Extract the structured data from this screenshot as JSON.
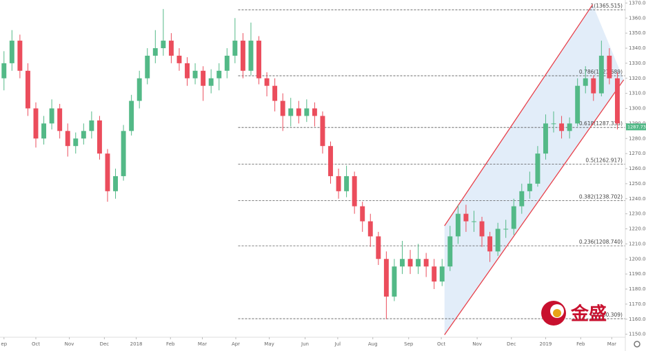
{
  "chart_data": {
    "type": "candlestick",
    "xlim": [
      -0.5,
      78
    ],
    "xticks": [
      {
        "value": 0,
        "label": "ep"
      },
      {
        "value": 4.0,
        "label": "Oct"
      },
      {
        "value": 8.2,
        "label": "Nov"
      },
      {
        "value": 12.6,
        "label": "Dec"
      },
      {
        "value": 16.6,
        "label": "2018"
      },
      {
        "value": 20.9,
        "label": "Feb"
      },
      {
        "value": 24.9,
        "label": "Mar"
      },
      {
        "value": 29.1,
        "label": "Apr"
      },
      {
        "value": 33.3,
        "label": "May"
      },
      {
        "value": 37.8,
        "label": "Jun"
      },
      {
        "value": 41.9,
        "label": "Jul"
      },
      {
        "value": 46.3,
        "label": "Aug"
      },
      {
        "value": 50.8,
        "label": "Sep"
      },
      {
        "value": 54.9,
        "label": "Oct"
      },
      {
        "value": 59.4,
        "label": "Nov"
      },
      {
        "value": 63.7,
        "label": "Dec"
      },
      {
        "value": 68.0,
        "label": "2019"
      },
      {
        "value": 72.4,
        "label": "Feb"
      },
      {
        "value": 76.3,
        "label": "Mar"
      }
    ],
    "ylim": [
      1148,
      1372
    ],
    "yticks": [
      {
        "value": 1150,
        "label": "1150.000"
      },
      {
        "value": 1160,
        "label": "1160.000"
      },
      {
        "value": 1170,
        "label": "1170.000"
      },
      {
        "value": 1180,
        "label": "1180.000"
      },
      {
        "value": 1190,
        "label": "1190.000"
      },
      {
        "value": 1200,
        "label": "1200.000"
      },
      {
        "value": 1210,
        "label": "1210.000"
      },
      {
        "value": 1220,
        "label": "1220.000"
      },
      {
        "value": 1230,
        "label": "1230.000"
      },
      {
        "value": 1240,
        "label": "1240.000"
      },
      {
        "value": 1250,
        "label": "1250.000"
      },
      {
        "value": 1260,
        "label": "1260.000"
      },
      {
        "value": 1270,
        "label": "1270.000"
      },
      {
        "value": 1280,
        "label": "1280.000"
      },
      {
        "value": 1290,
        "label": "1290.000"
      },
      {
        "value": 1300,
        "label": "1300.000"
      },
      {
        "value": 1310,
        "label": "1310.000"
      },
      {
        "value": 1320,
        "label": "1320.000"
      },
      {
        "value": 1330,
        "label": "1330.000"
      },
      {
        "value": 1340,
        "label": "1340.000"
      },
      {
        "value": 1350,
        "label": "1350.000"
      },
      {
        "value": 1360,
        "label": "1360.000"
      },
      {
        "value": 1370,
        "label": "1370.000"
      }
    ],
    "up_color": "#53b987",
    "down_color": "#eb4d5c",
    "open": [
      1320,
      1330,
      1345,
      1325,
      1300,
      1280,
      1290,
      1300,
      1285,
      1275,
      1280,
      1285,
      1292,
      1270,
      1245,
      1255,
      1285,
      1305,
      1320,
      1335,
      1340,
      1345,
      1335,
      1330,
      1320,
      1325,
      1315,
      1320,
      1325,
      1335,
      1345,
      1325,
      1345,
      1320,
      1315,
      1305,
      1295,
      1300,
      1295,
      1300,
      1295,
      1275,
      1255,
      1245,
      1255,
      1235,
      1225,
      1215,
      1200,
      1175,
      1195,
      1200,
      1195,
      1200,
      1195,
      1185,
      1195,
      1215,
      1230,
      1225,
      1225,
      1215,
      1205,
      1220,
      1220,
      1235,
      1245,
      1250,
      1270,
      1290,
      1290,
      1285,
      1290,
      1315,
      1320,
      1310,
      1335,
      1320
    ],
    "high": [
      1338,
      1352,
      1349,
      1330,
      1304,
      1295,
      1306,
      1303,
      1290,
      1284,
      1290,
      1298,
      1295,
      1273,
      1260,
      1289,
      1309,
      1325,
      1340,
      1352,
      1366,
      1350,
      1340,
      1334,
      1330,
      1328,
      1326,
      1330,
      1340,
      1360,
      1350,
      1357,
      1348,
      1324,
      1320,
      1310,
      1307,
      1305,
      1306,
      1304,
      1298,
      1278,
      1260,
      1262,
      1258,
      1238,
      1230,
      1218,
      1205,
      1200,
      1212,
      1206,
      1210,
      1204,
      1200,
      1200,
      1222,
      1236,
      1236,
      1232,
      1228,
      1218,
      1224,
      1226,
      1240,
      1250,
      1258,
      1275,
      1296,
      1298,
      1295,
      1294,
      1320,
      1328,
      1322,
      1345,
      1340,
      1324
    ],
    "low": [
      1312,
      1325,
      1320,
      1295,
      1274,
      1276,
      1286,
      1280,
      1268,
      1270,
      1276,
      1280,
      1266,
      1238,
      1240,
      1252,
      1282,
      1300,
      1316,
      1330,
      1335,
      1330,
      1325,
      1315,
      1316,
      1305,
      1310,
      1312,
      1320,
      1330,
      1320,
      1322,
      1316,
      1308,
      1298,
      1285,
      1288,
      1290,
      1291,
      1288,
      1270,
      1250,
      1240,
      1241,
      1230,
      1218,
      1208,
      1196,
      1160,
      1172,
      1190,
      1190,
      1190,
      1188,
      1180,
      1182,
      1192,
      1210,
      1218,
      1218,
      1208,
      1198,
      1202,
      1214,
      1216,
      1230,
      1240,
      1248,
      1266,
      1284,
      1280,
      1280,
      1288,
      1310,
      1305,
      1308,
      1316,
      1286
    ],
    "close": [
      1330,
      1345,
      1325,
      1300,
      1280,
      1290,
      1300,
      1285,
      1275,
      1280,
      1285,
      1292,
      1270,
      1245,
      1255,
      1285,
      1305,
      1320,
      1335,
      1340,
      1345,
      1335,
      1330,
      1320,
      1325,
      1315,
      1320,
      1325,
      1335,
      1345,
      1325,
      1345,
      1320,
      1315,
      1305,
      1295,
      1300,
      1295,
      1300,
      1295,
      1275,
      1255,
      1245,
      1255,
      1235,
      1225,
      1215,
      1200,
      1175,
      1195,
      1200,
      1195,
      1200,
      1195,
      1185,
      1195,
      1215,
      1230,
      1225,
      1225,
      1215,
      1205,
      1220,
      1220,
      1235,
      1245,
      1250,
      1270,
      1290,
      1290,
      1285,
      1290,
      1315,
      1320,
      1310,
      1335,
      1320,
      1290
    ],
    "fib_levels": [
      {
        "value": 1365.515,
        "label": "1(1365.515)"
      },
      {
        "value": 1321.689,
        "label": "0.786(1321.689)"
      },
      {
        "value": 1287.333,
        "label": "0.618(1287.333)"
      },
      {
        "value": 1262.917,
        "label": "0.5(1262.917)"
      },
      {
        "value": 1238.702,
        "label": "0.382(1238.702)"
      },
      {
        "value": 1208.74,
        "label": "0.236(1208.740)"
      },
      {
        "value": 1160.309,
        "label": "0(1160.309)"
      }
    ],
    "fib_start_x": 29.4,
    "channel": {
      "upper_x": [
        55.3,
        73.9
      ],
      "upper_y": [
        1222,
        1369
      ],
      "lower_x": [
        55.3,
        77.8
      ],
      "lower_y": [
        1149.6,
        1319
      ],
      "color": "#e8404a",
      "fill": "#dbe9f8"
    },
    "last_price": {
      "value": 1287.73,
      "label": "1287.730"
    },
    "watermark": "金盛"
  }
}
